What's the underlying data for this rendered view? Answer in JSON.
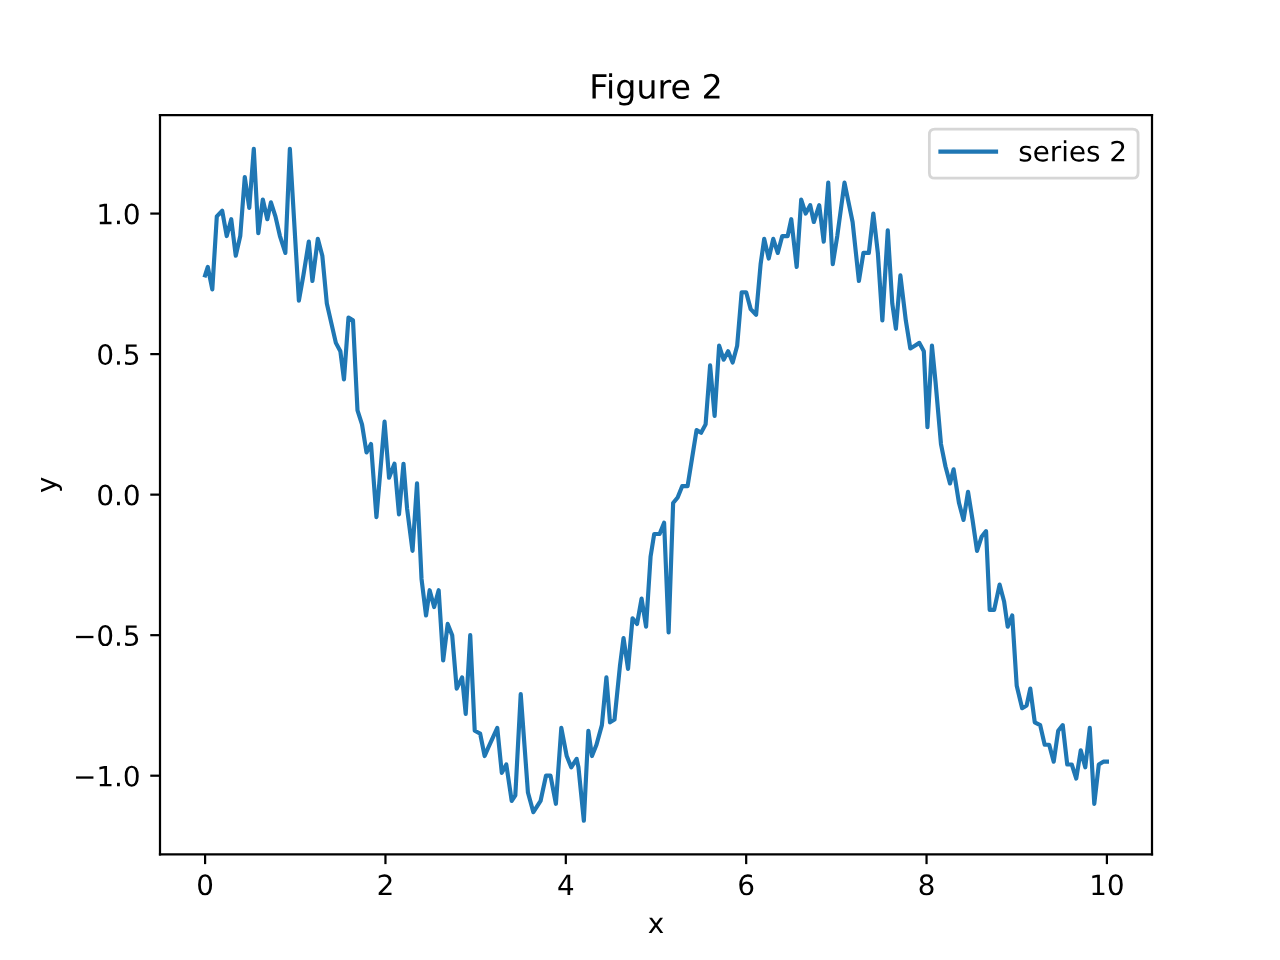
{
  "chart_data": {
    "type": "line",
    "title": "Figure 2",
    "xlabel": "x",
    "ylabel": "y",
    "series": [
      {
        "name": "series 2",
        "color": "#1f77b4",
        "x": [
          0,
          0.03,
          0.08,
          0.13,
          0.19,
          0.24,
          0.29,
          0.34,
          0.39,
          0.44,
          0.49,
          0.54,
          0.59,
          0.64,
          0.69,
          0.73,
          0.78,
          0.83,
          0.89,
          0.94,
          1.04,
          1.09,
          1.15,
          1.19,
          1.25,
          1.3,
          1.35,
          1.45,
          1.5,
          1.54,
          1.59,
          1.64,
          1.69,
          1.74,
          1.79,
          1.84,
          1.9,
          1.99,
          2.04,
          2.1,
          2.15,
          2.2,
          2.24,
          2.3,
          2.35,
          2.4,
          2.45,
          2.49,
          2.54,
          2.59,
          2.64,
          2.69,
          2.74,
          2.79,
          2.85,
          2.89,
          2.94,
          2.99,
          3.05,
          3.1,
          3.14,
          3.24,
          3.29,
          3.34,
          3.4,
          3.44,
          3.5,
          3.58,
          3.64,
          3.72,
          3.78,
          3.83,
          3.89,
          3.95,
          4.01,
          4.06,
          4.12,
          4.14,
          4.2,
          4.25,
          4.29,
          4.34,
          4.4,
          4.45,
          4.49,
          4.54,
          4.6,
          4.64,
          4.69,
          4.74,
          4.79,
          4.84,
          4.89,
          4.94,
          4.98,
          5.04,
          5.09,
          5.14,
          5.19,
          5.24,
          5.29,
          5.35,
          5.4,
          5.45,
          5.5,
          5.55,
          5.6,
          5.65,
          5.7,
          5.75,
          5.8,
          5.85,
          5.9,
          5.95,
          6.0,
          6.05,
          6.11,
          6.16,
          6.2,
          6.25,
          6.3,
          6.35,
          6.4,
          6.46,
          6.5,
          6.56,
          6.61,
          6.66,
          6.71,
          6.75,
          6.81,
          6.86,
          6.91,
          6.96,
          7.01,
          7.09,
          7.18,
          7.25,
          7.3,
          7.36,
          7.41,
          7.46,
          7.51,
          7.57,
          7.62,
          7.66,
          7.71,
          7.77,
          7.82,
          7.87,
          7.92,
          7.97,
          8.01,
          8.06,
          8.1,
          8.16,
          8.21,
          8.26,
          8.3,
          8.36,
          8.41,
          8.46,
          8.51,
          8.56,
          8.61,
          8.66,
          8.7,
          8.75,
          8.81,
          8.86,
          8.9,
          8.95,
          9.0,
          9.06,
          9.11,
          9.15,
          9.2,
          9.26,
          9.31,
          9.36,
          9.41,
          9.46,
          9.51,
          9.56,
          9.61,
          9.66,
          9.71,
          9.76,
          9.81,
          9.86,
          9.91,
          9.96,
          10.0
        ],
        "values": [
          0.78,
          0.81,
          0.73,
          0.99,
          1.01,
          0.92,
          0.98,
          0.85,
          0.92,
          1.13,
          1.02,
          1.23,
          0.93,
          1.05,
          0.98,
          1.04,
          0.99,
          0.92,
          0.86,
          1.23,
          0.69,
          0.78,
          0.9,
          0.76,
          0.91,
          0.85,
          0.68,
          0.54,
          0.51,
          0.41,
          0.63,
          0.62,
          0.3,
          0.25,
          0.15,
          0.18,
          -0.08,
          0.26,
          0.06,
          0.11,
          -0.07,
          0.11,
          -0.05,
          -0.2,
          0.04,
          -0.3,
          -0.43,
          -0.34,
          -0.4,
          -0.34,
          -0.59,
          -0.46,
          -0.5,
          -0.69,
          -0.65,
          -0.78,
          -0.5,
          -0.84,
          -0.85,
          -0.93,
          -0.9,
          -0.83,
          -0.99,
          -0.96,
          -1.09,
          -1.07,
          -0.71,
          -1.06,
          -1.13,
          -1.09,
          -1.0,
          -1.0,
          -1.1,
          -0.83,
          -0.93,
          -0.97,
          -0.94,
          -0.97,
          -1.16,
          -0.84,
          -0.93,
          -0.89,
          -0.82,
          -0.65,
          -0.81,
          -0.8,
          -0.61,
          -0.51,
          -0.62,
          -0.44,
          -0.46,
          -0.37,
          -0.47,
          -0.22,
          -0.14,
          -0.14,
          -0.1,
          -0.49,
          -0.03,
          -0.01,
          0.03,
          0.03,
          0.13,
          0.23,
          0.22,
          0.25,
          0.46,
          0.28,
          0.53,
          0.48,
          0.51,
          0.47,
          0.53,
          0.72,
          0.72,
          0.66,
          0.64,
          0.82,
          0.91,
          0.84,
          0.91,
          0.86,
          0.92,
          0.92,
          0.98,
          0.81,
          1.05,
          1.0,
          1.03,
          0.97,
          1.03,
          0.9,
          1.11,
          0.82,
          0.92,
          1.11,
          0.97,
          0.76,
          0.86,
          0.86,
          1.0,
          0.86,
          0.62,
          0.94,
          0.68,
          0.59,
          0.78,
          0.62,
          0.52,
          0.53,
          0.54,
          0.51,
          0.24,
          0.53,
          0.4,
          0.18,
          0.1,
          0.04,
          0.09,
          -0.03,
          -0.09,
          0.01,
          -0.09,
          -0.2,
          -0.15,
          -0.13,
          -0.41,
          -0.41,
          -0.32,
          -0.38,
          -0.47,
          -0.43,
          -0.68,
          -0.76,
          -0.75,
          -0.69,
          -0.81,
          -0.82,
          -0.89,
          -0.89,
          -0.95,
          -0.84,
          -0.82,
          -0.96,
          -0.96,
          -1.01,
          -0.91,
          -0.97,
          -0.83,
          -1.1,
          -0.96,
          -0.95,
          -0.95
        ]
      }
    ],
    "xlim": [
      -0.5,
      10.5
    ],
    "xticks": [
      0,
      2,
      4,
      6,
      8,
      10
    ],
    "ylim": [
      -1.28,
      1.35
    ],
    "yticks": [
      {
        "value": -1.0,
        "label": "−1.0"
      },
      {
        "value": -0.5,
        "label": "−0.5"
      },
      {
        "value": 0.0,
        "label": "0.0"
      },
      {
        "value": 0.5,
        "label": "0.5"
      },
      {
        "value": 1.0,
        "label": "1.0"
      }
    ],
    "grid": false,
    "legend": "top right",
    "marker": "none",
    "line_style": "solid"
  }
}
